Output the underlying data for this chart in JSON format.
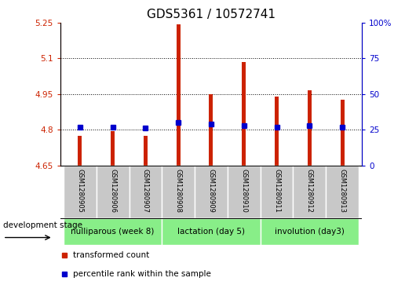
{
  "title": "GDS5361 / 10572741",
  "samples": [
    "GSM1280905",
    "GSM1280906",
    "GSM1280907",
    "GSM1280908",
    "GSM1280909",
    "GSM1280910",
    "GSM1280911",
    "GSM1280912",
    "GSM1280913"
  ],
  "transformed_count": [
    4.775,
    4.793,
    4.775,
    5.245,
    4.95,
    5.085,
    4.94,
    4.965,
    4.925
  ],
  "percentile_rank": [
    27,
    27,
    26,
    30,
    29,
    28,
    27,
    28,
    27
  ],
  "ymin": 4.65,
  "ymax": 5.25,
  "yticks": [
    4.65,
    4.8,
    4.95,
    5.1,
    5.25
  ],
  "ytick_labels": [
    "4.65",
    "4.8",
    "4.95",
    "5.1",
    "5.25"
  ],
  "y2ticks": [
    0,
    25,
    50,
    75,
    100
  ],
  "y2tick_labels": [
    "0",
    "25",
    "50",
    "75",
    "100%"
  ],
  "bar_color": "#cc2200",
  "marker_color": "#0000cc",
  "bar_bottom": 4.65,
  "groups": [
    {
      "label": "nulliparous (week 8)",
      "start": 0,
      "end": 3
    },
    {
      "label": "lactation (day 5)",
      "start": 3,
      "end": 6
    },
    {
      "label": "involution (day3)",
      "start": 6,
      "end": 9
    }
  ],
  "group_color": "#88ee88",
  "sample_bg_color": "#c8c8c8",
  "legend_items": [
    {
      "color": "#cc2200",
      "label": "transformed count"
    },
    {
      "color": "#0000cc",
      "label": "percentile rank within the sample"
    }
  ],
  "title_fontsize": 11,
  "tick_fontsize": 7.5,
  "bar_width": 0.12,
  "dev_stage_label": "development stage"
}
